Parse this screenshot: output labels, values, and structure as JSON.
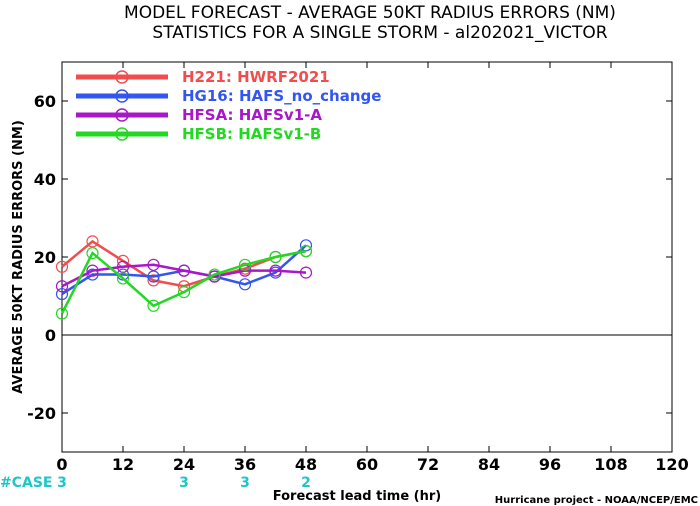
{
  "chart_data": {
    "type": "line",
    "title_line1": "MODEL FORECAST - AVERAGE 50KT RADIUS ERRORS (NM)",
    "title_line2": "STATISTICS FOR A SINGLE STORM - al202021_VICTOR",
    "ylabel": "AVERAGE 50KT RADIUS ERRORS (NM)",
    "xlabel": "Forecast lead time (hr)",
    "credit": "Hurricane project - NOAA/NCEP/EMC",
    "xlim": [
      0,
      120
    ],
    "ylim": [
      -30,
      70
    ],
    "x_ticks": [
      0,
      12,
      24,
      36,
      48,
      60,
      72,
      84,
      96,
      108,
      120
    ],
    "y_ticks": [
      -20,
      0,
      20,
      40,
      60
    ],
    "grid": false,
    "legend_position": "top-left",
    "case_label": "#CASE",
    "case_counts": [
      {
        "x": 0,
        "label": "3"
      },
      {
        "x": 24,
        "label": "3"
      },
      {
        "x": 36,
        "label": "3"
      },
      {
        "x": 48,
        "label": "2"
      }
    ],
    "x": [
      0,
      6,
      12,
      18,
      24,
      30,
      36,
      42,
      48
    ],
    "series": [
      {
        "name": "H221: HWRF2021",
        "color": "#f24d4d",
        "values": [
          17.5,
          24,
          19,
          14,
          12.5,
          15,
          17,
          20,
          21.5
        ]
      },
      {
        "name": "HG16: HAFS_no_change",
        "color": "#3355f0",
        "values": [
          10.5,
          15.5,
          15.5,
          15,
          16.5,
          15,
          13,
          16,
          23
        ]
      },
      {
        "name": "HFSA: HAFSv1-A",
        "color": "#a817c8",
        "values": [
          12.5,
          16.5,
          17.5,
          18,
          16.5,
          15,
          16.5,
          16.5,
          16
        ]
      },
      {
        "name": "HFSB: HAFSv1-B",
        "color": "#22d822",
        "values": [
          5.5,
          21,
          14.5,
          7.5,
          11,
          15.5,
          18,
          20,
          21.5
        ]
      }
    ]
  },
  "colors": {
    "case_color": "#20c5c8"
  }
}
